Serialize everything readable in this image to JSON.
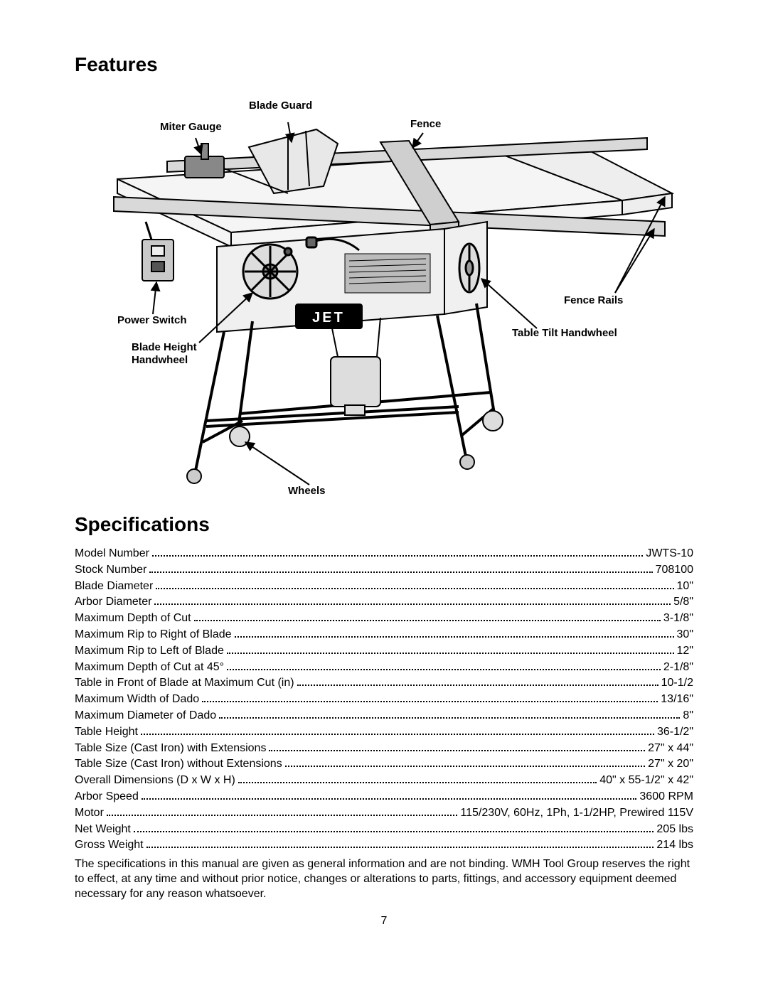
{
  "features": {
    "heading": "Features",
    "callouts": {
      "blade_guard": "Blade Guard",
      "miter_gauge": "Miter Gauge",
      "fence": "Fence",
      "fence_rails": "Fence Rails",
      "table_tilt_handwheel": "Table Tilt Handwheel",
      "power_switch": "Power Switch",
      "blade_height_handwheel_l1": "Blade Height",
      "blade_height_handwheel_l2": "Handwheel",
      "wheels": "Wheels"
    },
    "logo_text": "JET"
  },
  "specifications": {
    "heading": "Specifications",
    "rows": [
      {
        "label": "Model Number",
        "value": "JWTS-10"
      },
      {
        "label": "Stock Number",
        "value": "708100"
      },
      {
        "label": "Blade Diameter",
        "value": "10\""
      },
      {
        "label": "Arbor Diameter",
        "value": "5/8\""
      },
      {
        "label": "Maximum Depth of Cut",
        "value": "3-1/8\""
      },
      {
        "label": "Maximum Rip to Right of Blade",
        "value": "30\""
      },
      {
        "label": "Maximum Rip to Left of Blade",
        "value": "12\""
      },
      {
        "label": "Maximum Depth of Cut at 45°",
        "value": "2-1/8\""
      },
      {
        "label": "Table in Front of Blade at Maximum Cut (in)",
        "value": "10-1/2"
      },
      {
        "label": "Maximum Width of Dado",
        "value": "13/16\""
      },
      {
        "label": "Maximum Diameter of Dado",
        "value": "8\""
      },
      {
        "label": "Table Height",
        "value": "36-1/2\""
      },
      {
        "label": "Table Size (Cast Iron) with Extensions",
        "value": "27\" x 44\""
      },
      {
        "label": "Table Size (Cast Iron) without Extensions",
        "value": "27\" x 20\""
      },
      {
        "label": "Overall Dimensions (D x W x H)",
        "value": "40\" x 55-1/2\" x 42\""
      },
      {
        "label": "Arbor Speed",
        "value": "3600 RPM"
      },
      {
        "label": "Motor",
        "value": "115/230V, 60Hz, 1Ph, 1-1/2HP, Prewired 115V"
      },
      {
        "label": "Net Weight",
        "value": "205 lbs"
      },
      {
        "label": "Gross Weight",
        "value": "214 lbs"
      }
    ],
    "disclaimer": "The specifications in this manual are given as general information and are not binding.  WMH Tool Group reserves the right to effect, at any time and without prior notice, changes or alterations to parts, fittings, and accessory equipment deemed necessary for any reason whatsoever."
  },
  "page_number": "7"
}
